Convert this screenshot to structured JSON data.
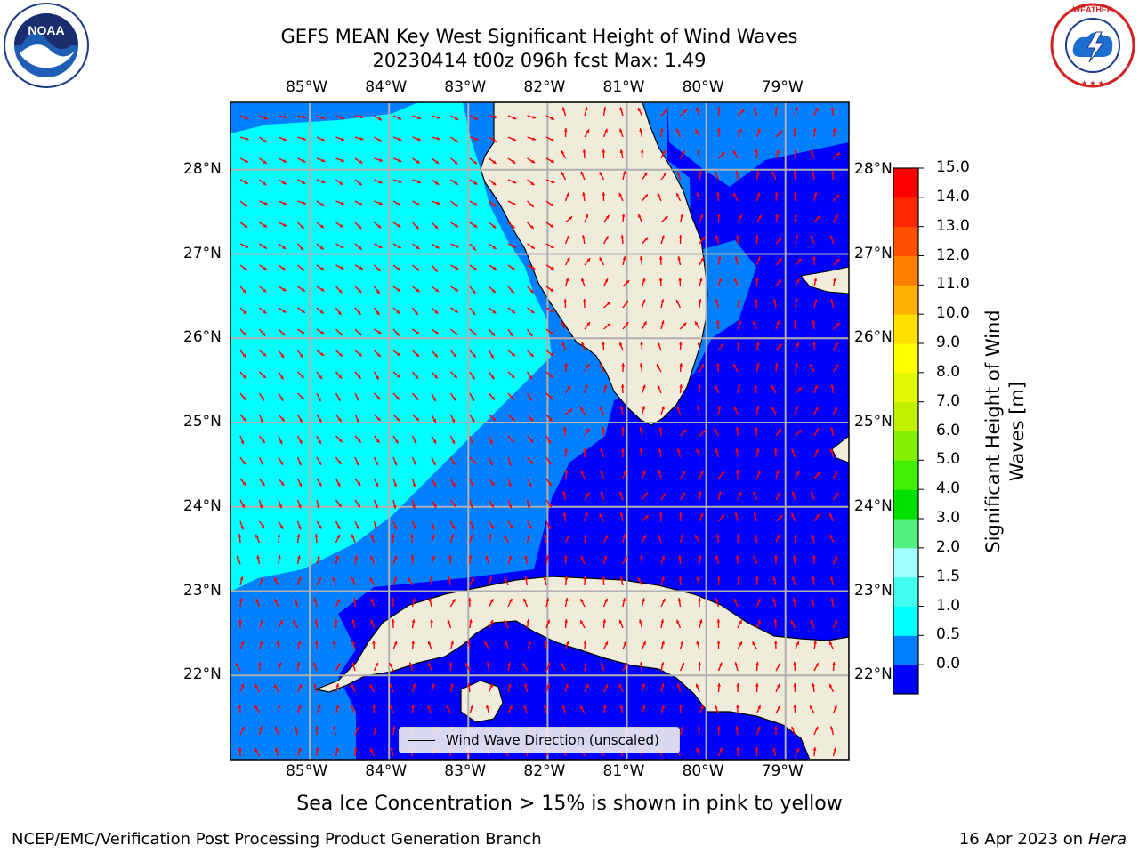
{
  "title": {
    "line1": "GEFS MEAN Key West Significant Height of Wind Waves",
    "line2": "20230414 t00z 096h fcst   Max: 1.49"
  },
  "logos": {
    "left": {
      "icon": "noaa-logo-icon",
      "text": "NOAA"
    },
    "right": {
      "icon": "national-weather-service-logo-icon",
      "text": "NATIONAL WEATHER SERVICE"
    }
  },
  "map": {
    "lon_range": [
      -86.0,
      -78.2
    ],
    "lat_range": [
      21.0,
      28.8
    ],
    "lon_ticks": [
      "85°W",
      "84°W",
      "83°W",
      "82°W",
      "81°W",
      "80°W",
      "79°W"
    ],
    "lat_ticks": [
      "28°N",
      "27°N",
      "26°N",
      "25°N",
      "24°N",
      "23°N",
      "22°N"
    ],
    "land_color": "#efecdc",
    "arrow_color": "#ff0000",
    "grid_color": "#b0b0b0"
  },
  "legend": {
    "label": "Wind Wave Direction (unscaled)"
  },
  "colorbar": {
    "label": "Significant Height of Wind Waves [m]",
    "ticks": [
      "15.0",
      "14.0",
      "13.0",
      "12.0",
      "11.0",
      "10.0",
      "9.0",
      "8.0",
      "7.0",
      "6.0",
      "5.0",
      "4.0",
      "3.0",
      "2.0",
      "1.5",
      "1.0",
      "0.5",
      "0.0"
    ],
    "colors": [
      "#0000ff",
      "#0080ff",
      "#00ffff",
      "#40ffef",
      "#a0ffff",
      "#50f080",
      "#00e000",
      "#40f000",
      "#80f000",
      "#c0f000",
      "#e0f800",
      "#ffff00",
      "#ffe000",
      "#ffb000",
      "#ff8000",
      "#ff5000",
      "#ff2800",
      "#ff0000"
    ]
  },
  "footer": {
    "note": "Sea Ice Concentration > 15% is shown in pink to yellow",
    "left": "NCEP/EMC/Verification Post Processing Product Generation Branch",
    "right_prefix": "16 Apr 2023 on ",
    "right_machine": "Hera"
  }
}
